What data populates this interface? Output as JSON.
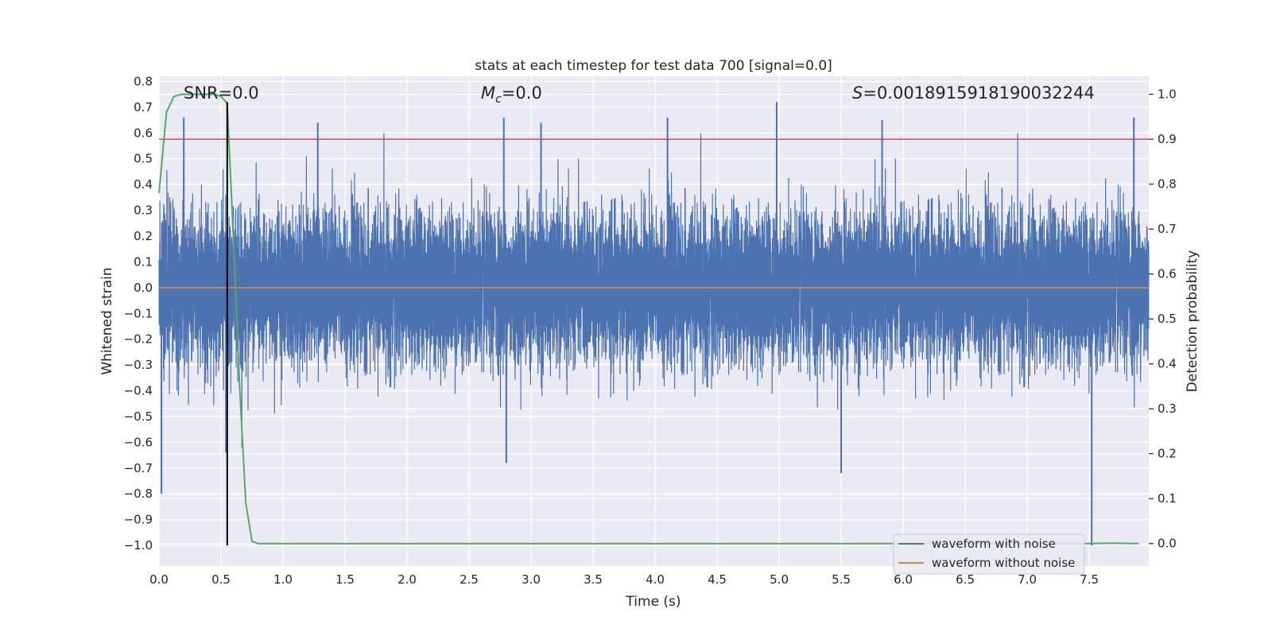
{
  "chart_data": {
    "type": "line",
    "title": "stats at each timestep for test data 700 [signal=0.0]",
    "xlabel": "Time (s)",
    "ylabel": "Whitened strain",
    "y2label": "Detection probability",
    "xlim": [
      0.0,
      7.98
    ],
    "ylim": [
      -1.08,
      0.82
    ],
    "y2lim": [
      -0.05,
      1.04
    ],
    "xticks": [
      "0.0",
      "0.5",
      "1.0",
      "1.5",
      "2.0",
      "2.5",
      "3.0",
      "3.5",
      "4.0",
      "4.5",
      "5.0",
      "5.5",
      "6.0",
      "6.5",
      "7.0",
      "7.5"
    ],
    "yticks": [
      "0.8",
      "0.7",
      "0.6",
      "0.5",
      "0.4",
      "0.3",
      "0.2",
      "0.1",
      "0.0",
      "−0.1",
      "−0.2",
      "−0.3",
      "−0.4",
      "−0.5",
      "−0.6",
      "−0.7",
      "−0.8",
      "−0.9",
      "−1.0"
    ],
    "y2ticks": [
      "1.0",
      "0.9",
      "0.8",
      "0.7",
      "0.6",
      "0.5",
      "0.4",
      "0.3",
      "0.2",
      "0.1",
      "0.0"
    ],
    "grid": true,
    "annotations": {
      "snr": "SNR=0.0",
      "mc_prefix": "M",
      "mc_sub": "c",
      "mc_value": "=0.0",
      "s_prefix": "S",
      "s_value": "=0.0018915918190032244"
    },
    "threshold_line": {
      "axis": "y2",
      "value": 0.9,
      "color": "#c44e52"
    },
    "marker_line": {
      "x": 0.55,
      "y_from": -1.0,
      "y_to": 0.72,
      "color": "#000000"
    },
    "series": [
      {
        "name": "waveform with noise",
        "color": "#4c72b0",
        "axis": "y",
        "kind": "noise",
        "sample_rate_hz": 2048,
        "std": 0.14,
        "peaks": [
          {
            "x": 0.02,
            "y": -0.8
          },
          {
            "x": 0.2,
            "y": 0.66
          },
          {
            "x": 0.54,
            "y": -0.64
          },
          {
            "x": 1.28,
            "y": 0.64
          },
          {
            "x": 2.78,
            "y": 0.66
          },
          {
            "x": 2.8,
            "y": -0.68
          },
          {
            "x": 3.08,
            "y": 0.64
          },
          {
            "x": 4.1,
            "y": 0.66
          },
          {
            "x": 4.98,
            "y": 0.72
          },
          {
            "x": 5.5,
            "y": -0.72
          },
          {
            "x": 5.83,
            "y": 0.65
          },
          {
            "x": 7.52,
            "y": -1.0
          },
          {
            "x": 7.86,
            "y": 0.66
          }
        ]
      },
      {
        "name": "waveform without noise",
        "color": "#dd8452",
        "axis": "y",
        "x": [
          0.0,
          7.98
        ],
        "y": [
          0.0,
          0.0
        ]
      },
      {
        "name": "detection probability",
        "color": "#55a868",
        "axis": "y2",
        "x": [
          0.0,
          0.06,
          0.12,
          0.18,
          0.25,
          0.35,
          0.45,
          0.5,
          0.55,
          0.6,
          0.65,
          0.7,
          0.75,
          0.8,
          1.0,
          3.0,
          5.0,
          7.0,
          7.5,
          7.7,
          7.9
        ],
        "y": [
          0.78,
          0.96,
          0.995,
          1.0,
          1.0,
          1.0,
          1.0,
          0.995,
          0.98,
          0.68,
          0.35,
          0.09,
          0.005,
          0.0,
          0.0,
          0.0,
          0.0,
          0.0,
          0.0,
          0.001,
          0.0
        ]
      }
    ],
    "legend": {
      "position": "lower-right",
      "entries": [
        {
          "label": "waveform with noise",
          "color": "#4c72b0"
        },
        {
          "label": "waveform without noise",
          "color": "#dd8452"
        }
      ]
    },
    "colors": {
      "plot_background": "#eaeaf2",
      "grid": "#ffffff",
      "text": "#262626"
    }
  }
}
